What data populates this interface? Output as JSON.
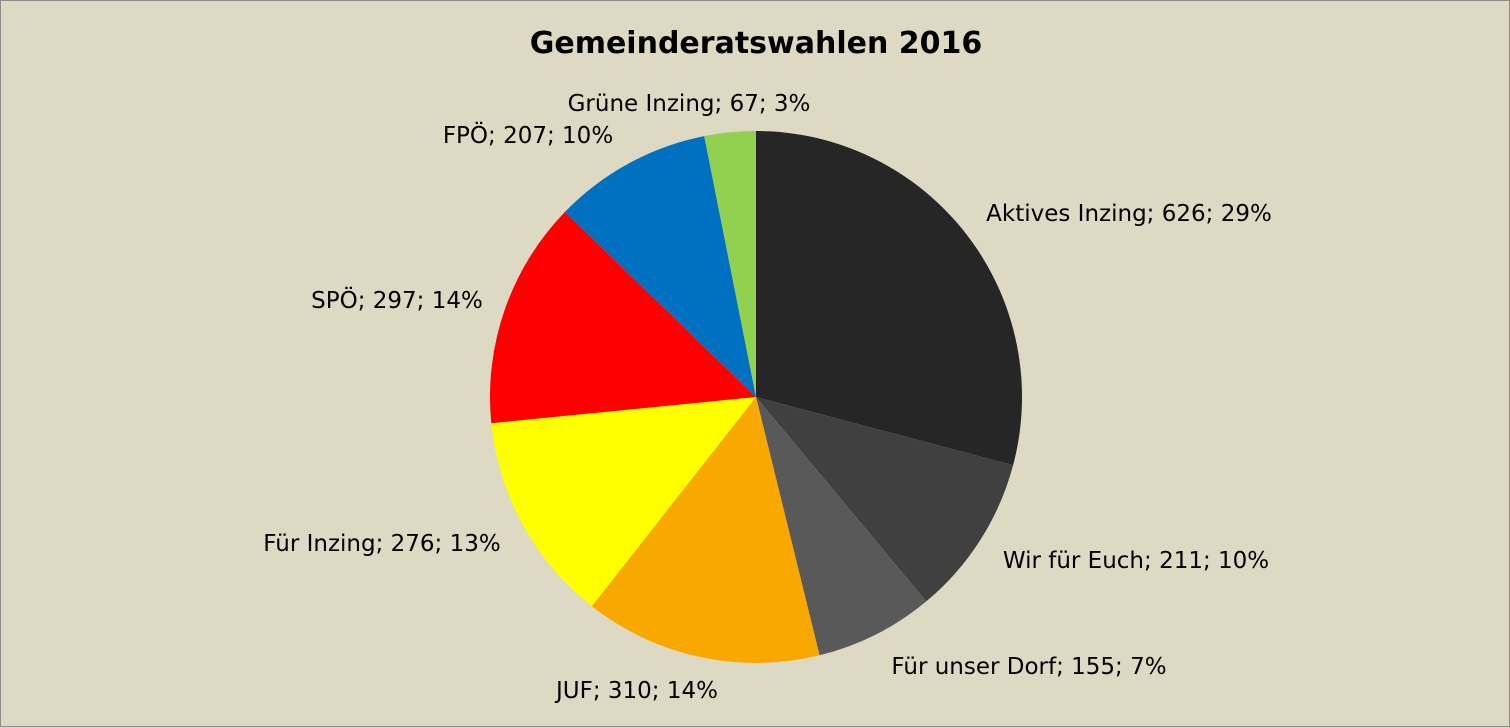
{
  "chart_data": {
    "type": "pie",
    "title": "Gemeinderatswahlen 2016",
    "slices": [
      {
        "name": "Aktives Inzing",
        "value": 626,
        "percent": "29%",
        "color": "#262626",
        "label": "Aktives Inzing; 626; 29%"
      },
      {
        "name": "Wir für Euch",
        "value": 211,
        "percent": "10%",
        "color": "#404040",
        "label": "Wir für Euch; 211; 10%"
      },
      {
        "name": "Für unser Dorf",
        "value": 155,
        "percent": "7%",
        "color": "#595959",
        "label": "Für unser Dorf; 155; 7%"
      },
      {
        "name": "JUF",
        "value": 310,
        "percent": "14%",
        "color": "#f9a800",
        "label": "JUF; 310; 14%"
      },
      {
        "name": "Für Inzing",
        "value": 276,
        "percent": "13%",
        "color": "#ffff00",
        "label": "Für Inzing; 276; 13%"
      },
      {
        "name": "SPÖ",
        "value": 297,
        "percent": "14%",
        "color": "#ff0000",
        "label": "SPÖ; 297; 14%"
      },
      {
        "name": "FPÖ",
        "value": 207,
        "percent": "10%",
        "color": "#0070c0",
        "label": "FPÖ; 207; 10%"
      },
      {
        "name": "Grüne Inzing",
        "value": 67,
        "percent": "3%",
        "color": "#92d050",
        "label": "Grüne Inzing; 67; 3%"
      }
    ],
    "start_angle": "12 o'clock",
    "direction": "clockwise",
    "legend": "none",
    "background": "#ddd9c3"
  }
}
